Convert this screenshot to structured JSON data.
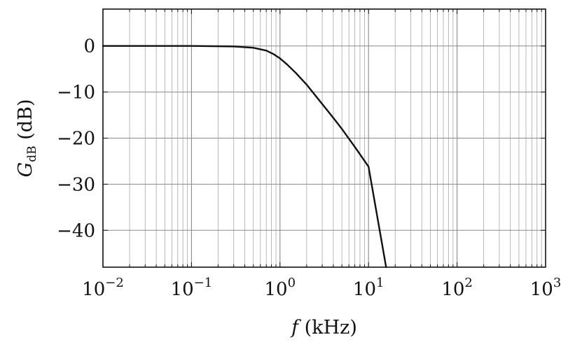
{
  "chart_data": {
    "type": "line",
    "xscale": "log",
    "xlim": [
      0.01,
      1000
    ],
    "ylim": [
      -48,
      8
    ],
    "grid": true,
    "xlabel": {
      "main": "f",
      "rest": " (kHz)"
    },
    "ylabel": {
      "main": "G",
      "sub": "dB",
      "rest": " (dB)"
    },
    "x_ticks": [
      {
        "value": 0.01,
        "base": "10",
        "exp": "−2"
      },
      {
        "value": 0.1,
        "base": "10",
        "exp": "−1"
      },
      {
        "value": 1,
        "base": "10",
        "exp": "0"
      },
      {
        "value": 10,
        "base": "10",
        "exp": "1"
      },
      {
        "value": 100,
        "base": "10",
        "exp": "2"
      },
      {
        "value": 1000,
        "base": "10",
        "exp": "3"
      }
    ],
    "y_ticks": [
      {
        "value": 0,
        "label": "0"
      },
      {
        "value": -10,
        "label": "−10"
      },
      {
        "value": -20,
        "label": "−20"
      },
      {
        "value": -30,
        "label": "−30"
      },
      {
        "value": -40,
        "label": "−40"
      }
    ],
    "series": [
      {
        "color": "#111111",
        "x": [
          0.01,
          0.1,
          0.3,
          0.5,
          0.7,
          0.85,
          1.0,
          1.2,
          1.5,
          2,
          3,
          4,
          5,
          7,
          10,
          15.8
        ],
        "y": [
          0,
          0,
          -0.1,
          -0.4,
          -1.0,
          -1.8,
          -2.7,
          -4.0,
          -5.8,
          -8.4,
          -12.6,
          -15.6,
          -18.0,
          -21.9,
          -26.2,
          -48
        ]
      }
    ]
  }
}
